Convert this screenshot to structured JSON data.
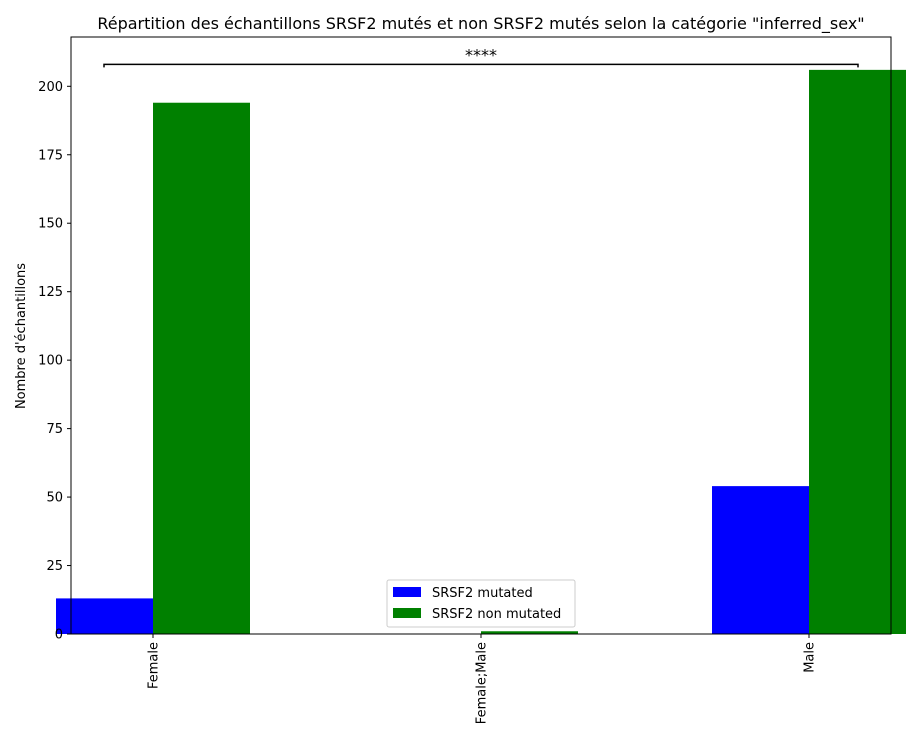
{
  "chart_data": {
    "type": "bar",
    "title": "Répartition des échantillons SRSF2 mutés et non SRSF2 mutés selon la catégorie \"inferred_sex\"",
    "xlabel": "",
    "ylabel": "Nombre d'échantillons",
    "categories": [
      "Female",
      "Female;Male",
      "Male"
    ],
    "series": [
      {
        "name": "SRSF2 mutated",
        "color": "#0000ff",
        "values": [
          13,
          0,
          54
        ]
      },
      {
        "name": "SRSF2 non mutated",
        "color": "#008000",
        "values": [
          194,
          1,
          206
        ]
      }
    ],
    "ylim": [
      0,
      218
    ],
    "yticks": [
      0,
      25,
      50,
      75,
      100,
      125,
      150,
      175,
      200
    ],
    "grid": false,
    "legend_position": "bottom-center",
    "significance": {
      "label": "****",
      "from_category": "Female",
      "to_category": "Male",
      "y": 208
    }
  }
}
